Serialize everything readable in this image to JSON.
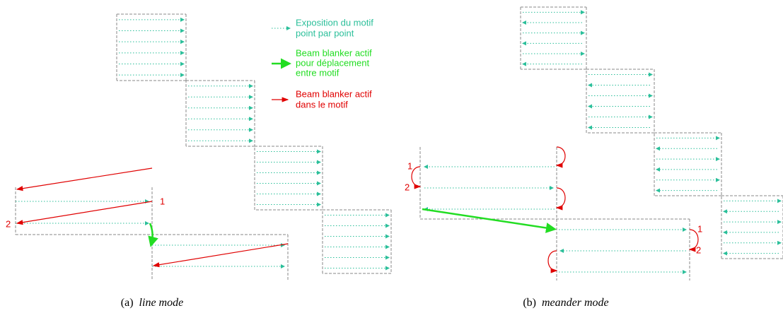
{
  "legend": {
    "exposure": [
      "Exposition du motif",
      "point par point"
    ],
    "blank_between": [
      "Beam blanker actif",
      "pour déplacement",
      "entre motif"
    ],
    "blank_within": [
      "Beam blanker actif",
      "dans le motif"
    ]
  },
  "panel_a": {
    "labels": [
      "1",
      "2"
    ],
    "caption": {
      "label": "(a)",
      "text": "line mode"
    }
  },
  "panel_b": {
    "labels": [
      "1",
      "2",
      "1",
      "2"
    ],
    "caption": {
      "label": "(b)",
      "text": "meander mode"
    }
  }
}
